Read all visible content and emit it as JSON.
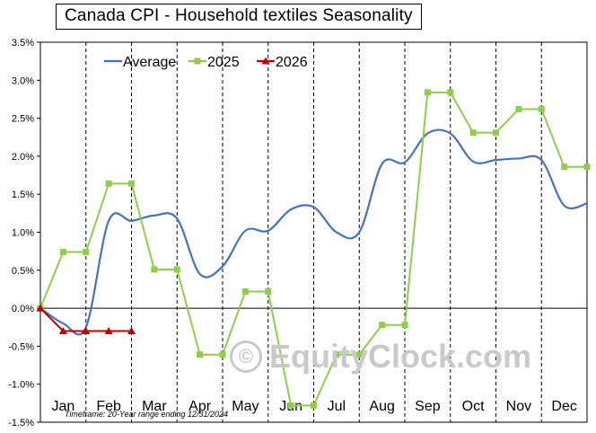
{
  "chart_data": {
    "type": "line",
    "title": "Canada  CPI - Household textiles Seasonality",
    "footnote": "Timeframe: 20-Year range ending 12/31/2024",
    "watermark": "EquityClock.com",
    "watermark_symbol": "©",
    "months": [
      "Jan",
      "Feb",
      "Mar",
      "Apr",
      "May",
      "Jun",
      "Jul",
      "Aug",
      "Sep",
      "Oct",
      "Nov",
      "Dec"
    ],
    "y_ticks": [
      "3.5%",
      "3.0%",
      "2.5%",
      "2.0%",
      "1.5%",
      "1.0%",
      "0.5%",
      "0.0%",
      "-0.5%",
      "-1.0%",
      "-1.5%"
    ],
    "ylim": [
      -1.5,
      3.5
    ],
    "grid": "vertical dashed at month boundaries",
    "legend_position": "top-left",
    "series": [
      {
        "name": "Average",
        "color": "#4472c4",
        "marker": "none",
        "x": [
          0,
          0.5,
          1,
          1.5,
          2,
          2.5,
          3,
          3.5,
          4,
          4.5,
          5,
          5.5,
          6,
          6.5,
          7,
          7.5,
          8,
          8.5,
          9,
          9.5,
          10,
          10.5,
          11,
          11.5,
          12
        ],
        "y": [
          0.0,
          -0.2,
          -0.25,
          1.15,
          1.15,
          1.22,
          1.18,
          0.45,
          0.55,
          1.02,
          1.02,
          1.3,
          1.33,
          1.0,
          1.0,
          1.9,
          1.92,
          2.3,
          2.3,
          1.93,
          1.95,
          1.97,
          1.95,
          1.35,
          1.38
        ]
      },
      {
        "name": "2025",
        "color": "#8fce4a",
        "marker": "square",
        "x": [
          0,
          0.5,
          1,
          1.5,
          2,
          2.5,
          3,
          3.5,
          4,
          4.5,
          5,
          5.5,
          6,
          6.5,
          7,
          7.5,
          8,
          8.5,
          9,
          9.5,
          10,
          10.5,
          11,
          11.5,
          12
        ],
        "y": [
          0.0,
          0.74,
          0.74,
          1.64,
          1.64,
          0.51,
          0.51,
          -0.61,
          -0.61,
          0.22,
          0.22,
          -1.28,
          -1.28,
          -0.61,
          -0.61,
          -0.22,
          -0.22,
          2.84,
          2.84,
          2.31,
          2.31,
          2.62,
          2.62,
          1.86,
          1.86
        ]
      },
      {
        "name": "2026",
        "color": "#c00000",
        "marker": "triangle",
        "x": [
          0,
          0.5,
          1,
          1.5,
          2
        ],
        "y": [
          0.0,
          -0.3,
          -0.3,
          -0.3,
          -0.3
        ]
      }
    ]
  }
}
